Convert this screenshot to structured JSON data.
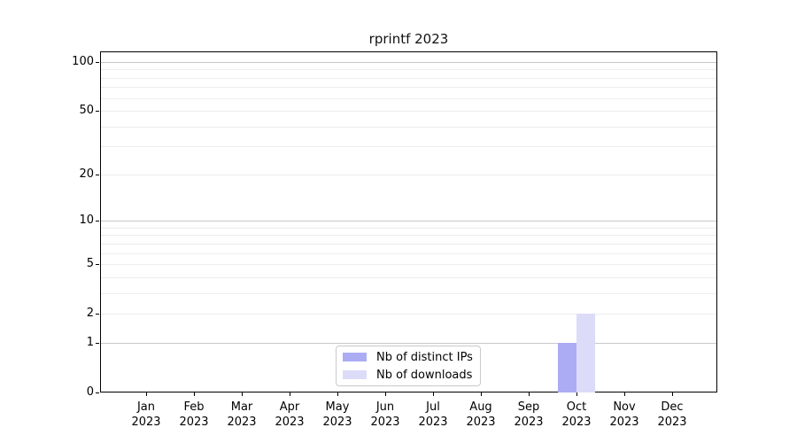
{
  "chart_data": {
    "type": "bar",
    "title": "rprintf 2023",
    "categories": [
      "Jan",
      "Feb",
      "Mar",
      "Apr",
      "May",
      "Jun",
      "Jul",
      "Aug",
      "Sep",
      "Oct",
      "Nov",
      "Dec"
    ],
    "category_year": "2023",
    "series": [
      {
        "name": "Nb of distinct IPs",
        "color": "#acacf4",
        "values": [
          0,
          0,
          0,
          0,
          0,
          0,
          0,
          0,
          0,
          1,
          0,
          0
        ]
      },
      {
        "name": "Nb of downloads",
        "color": "#dcdcf8",
        "values": [
          0,
          0,
          0,
          0,
          0,
          0,
          0,
          0,
          0,
          2,
          0,
          0
        ]
      }
    ],
    "y_scale": "log1p",
    "y_ticks": [
      0,
      1,
      2,
      5,
      10,
      20,
      50,
      100
    ],
    "y_major_grid": [
      1,
      10,
      100
    ],
    "y_minor_grid": [
      2,
      3,
      4,
      5,
      6,
      7,
      8,
      9,
      20,
      30,
      40,
      50,
      60,
      70,
      80,
      90
    ],
    "ylim": [
      0,
      116
    ],
    "grid": true,
    "legend_position": "lower center"
  },
  "colors": {
    "background": "#ffffff",
    "axis": "#000000",
    "major_grid": "#c8c8c8",
    "minor_grid": "#ededed",
    "legend_border": "#c9c9c9",
    "text": "#000000"
  }
}
